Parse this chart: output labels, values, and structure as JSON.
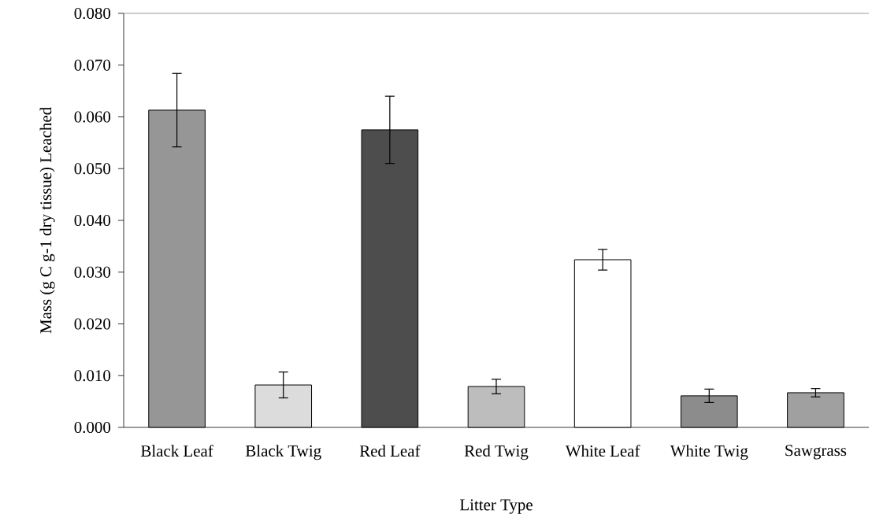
{
  "chart_data": {
    "type": "bar",
    "xlabel": "Litter Type",
    "ylabel": "Mass (g C g-1 dry tissue) Leached",
    "categories": [
      "Black Leaf",
      "Black Twig",
      "Red Leaf",
      "Red Twig",
      "White Leaf",
      "White Twig",
      "Sawgrass"
    ],
    "values": [
      0.0613,
      0.0082,
      0.0575,
      0.0079,
      0.0324,
      0.0061,
      0.0067
    ],
    "errors": [
      0.0071,
      0.0025,
      0.0065,
      0.0014,
      0.002,
      0.0013,
      0.0008
    ],
    "colors": [
      "#969696",
      "#dcdcdc",
      "#4d4d4d",
      "#bdbdbd",
      "#ffffff",
      "#8c8c8c",
      "#a0a0a0"
    ],
    "ylim": [
      0,
      0.08
    ],
    "yticks": [
      {
        "value": 0,
        "label": "0.000"
      },
      {
        "value": 0.01,
        "label": "0.010"
      },
      {
        "value": 0.02,
        "label": "0.020"
      },
      {
        "value": 0.03,
        "label": "0.030"
      },
      {
        "value": 0.04,
        "label": "0.040"
      },
      {
        "value": 0.05,
        "label": "0.050"
      },
      {
        "value": 0.06,
        "label": "0.060"
      },
      {
        "value": 0.07,
        "label": "0.070"
      },
      {
        "value": 0.08,
        "label": "0.080"
      }
    ],
    "grid": false
  }
}
